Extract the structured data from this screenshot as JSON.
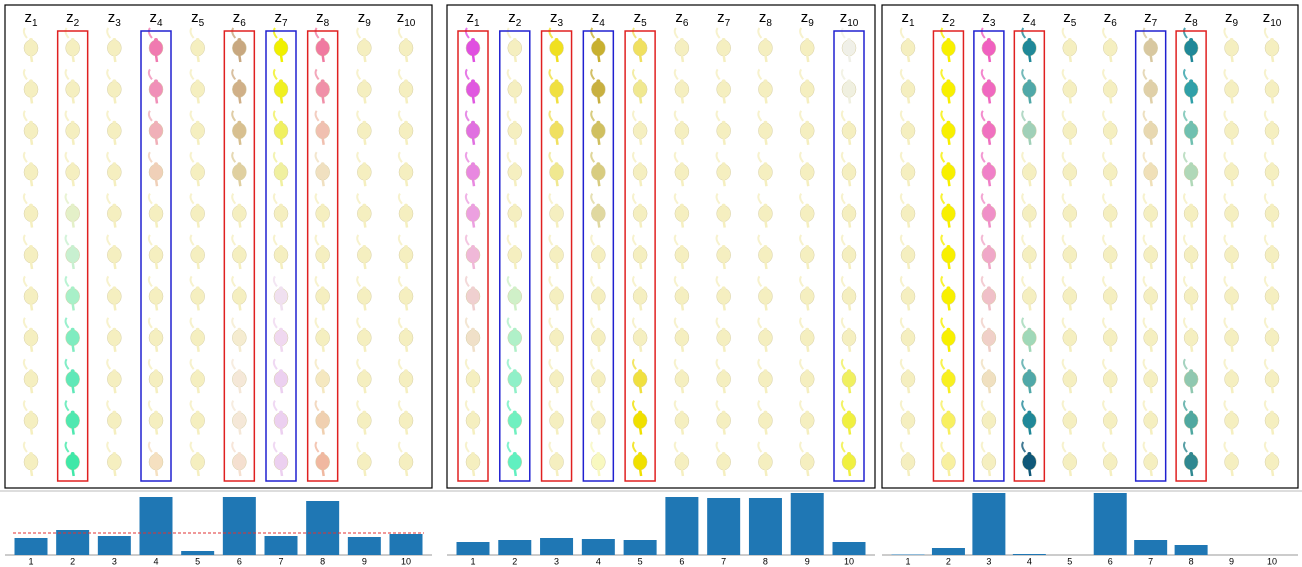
{
  "panels": [
    {
      "columns": [
        {
          "base": "z",
          "sub": "1"
        },
        {
          "base": "z",
          "sub": "2",
          "box": "#e02020",
          "colors": [
            "#f5efc0",
            "#f5efc0",
            "#f5efc0",
            "#f5efc0",
            "#e4f0c8",
            "#c8f0d0",
            "#a8f0c8",
            "#80ecc0",
            "#60e8b8",
            "#50e8b0",
            "#40e8a8"
          ]
        },
        {
          "base": "z",
          "sub": "3"
        },
        {
          "base": "z",
          "sub": "4",
          "box": "#2020d0",
          "colors": [
            "#f07ab0",
            "#f090b8",
            "#f0b0b8",
            "#f0d0b8",
            "#f5efc0",
            "#f5efc0",
            "#f5efc0",
            "#f5efc0",
            "#f5efc0",
            "#f5efc0",
            "#f5e0c0"
          ]
        },
        {
          "base": "z",
          "sub": "5"
        },
        {
          "base": "z",
          "sub": "6",
          "box": "#e02020",
          "colors": [
            "#c8a880",
            "#d0b088",
            "#d8c090",
            "#e0d0a0",
            "#f5efc0",
            "#f5efc0",
            "#f5efc0",
            "#f5ecd0",
            "#f5e8d8",
            "#f5e8d8",
            "#f5e0d0"
          ]
        },
        {
          "base": "z",
          "sub": "7",
          "box": "#2020d0",
          "colors": [
            "#f0f000",
            "#f0f020",
            "#f0f060",
            "#f0f0a0",
            "#f5efc0",
            "#f5efc0",
            "#f0e0f0",
            "#f0d8f0",
            "#ecd0f0",
            "#ecd0f0",
            "#ecd0f0"
          ]
        },
        {
          "base": "z",
          "sub": "8",
          "box": "#e02020",
          "colors": [
            "#f07aa0",
            "#f090a8",
            "#f0c0b0",
            "#f0e0c0",
            "#f5efc0",
            "#f5efc0",
            "#f5efc0",
            "#f5efc0",
            "#f5e8c0",
            "#f0d0b0",
            "#f0b8a0"
          ]
        },
        {
          "base": "z",
          "sub": "9"
        },
        {
          "base": "z",
          "sub": "10"
        }
      ],
      "default_color": "#f5efc0"
    },
    {
      "columns": [
        {
          "base": "z",
          "sub": "1",
          "box": "#e02020",
          "colors": [
            "#e050e0",
            "#e058e0",
            "#e070e0",
            "#e888e0",
            "#eca0e0",
            "#f0b8d8",
            "#f0d0d0",
            "#f0e0c8",
            "#f5efc0",
            "#f5efc0",
            "#f5efc0"
          ]
        },
        {
          "base": "z",
          "sub": "2",
          "box": "#2020d0",
          "colors": [
            "#f5efc0",
            "#f5efc0",
            "#f5efc0",
            "#f5efc0",
            "#f5efc0",
            "#f5efc0",
            "#d0f0c8",
            "#b0f0c8",
            "#90f0c8",
            "#70f0c0",
            "#60f0c0"
          ]
        },
        {
          "base": "z",
          "sub": "3",
          "box": "#e02020",
          "colors": [
            "#f0e020",
            "#f0e040",
            "#f0e060",
            "#f0e890",
            "#f5efc0",
            "#f5efc0",
            "#f5efc0",
            "#f5efc0",
            "#f5efc0",
            "#f5efc0",
            "#f5efc0"
          ]
        },
        {
          "base": "z",
          "sub": "4",
          "box": "#2020d0",
          "colors": [
            "#c8b030",
            "#c8b040",
            "#d0c060",
            "#d8cc80",
            "#e0d8a0",
            "#f5efc0",
            "#f5efc0",
            "#f5efc0",
            "#f5efc0",
            "#f5efc0",
            "#f8f8c0"
          ]
        },
        {
          "base": "z",
          "sub": "5",
          "box": "#e02020",
          "colors": [
            "#f0e060",
            "#f0e890",
            "#f5efc0",
            "#f5efc0",
            "#f5efc0",
            "#f5efc0",
            "#f5efc0",
            "#f5efc0",
            "#f0e040",
            "#f0e000",
            "#f0e000"
          ]
        },
        {
          "base": "z",
          "sub": "6"
        },
        {
          "base": "z",
          "sub": "7"
        },
        {
          "base": "z",
          "sub": "8"
        },
        {
          "base": "z",
          "sub": "9"
        },
        {
          "base": "z",
          "sub": "10",
          "box": "#2020d0",
          "colors": [
            "#f0f0e8",
            "#f0f0e0",
            "#f5efc0",
            "#f5efc0",
            "#f5efc0",
            "#f5efc0",
            "#f5efc0",
            "#f5efc0",
            "#f0f060",
            "#f0f040",
            "#f0f040"
          ]
        }
      ],
      "default_color": "#f5efc0"
    },
    {
      "columns": [
        {
          "base": "z",
          "sub": "1"
        },
        {
          "base": "z",
          "sub": "2",
          "box": "#e02020",
          "colors": [
            "#f8f000",
            "#f8f000",
            "#f8f000",
            "#f8f000",
            "#f8f000",
            "#f8f000",
            "#f8f000",
            "#f8f000",
            "#f8f020",
            "#f8f060",
            "#f8f0a0"
          ]
        },
        {
          "base": "z",
          "sub": "3",
          "box": "#2020d0",
          "colors": [
            "#f060c0",
            "#f068c0",
            "#f070c0",
            "#f080c8",
            "#f090c8",
            "#f0a8c8",
            "#f0c0c8",
            "#f0d0c8",
            "#f0e0c0",
            "#f5efc0",
            "#f5efc0"
          ]
        },
        {
          "base": "z",
          "sub": "4",
          "box": "#e02020",
          "colors": [
            "#208898",
            "#50a8a8",
            "#a0d0b8",
            "#f5efc0",
            "#f5efc0",
            "#f5efc0",
            "#f5efc0",
            "#a0d8b8",
            "#50a8a8",
            "#208898",
            "#105878"
          ]
        },
        {
          "base": "z",
          "sub": "5"
        },
        {
          "base": "z",
          "sub": "6"
        },
        {
          "base": "z",
          "sub": "7",
          "box": "#2020d0",
          "colors": [
            "#d8c8a0",
            "#e0d0a8",
            "#e8d8b0",
            "#f0e0b8",
            "#f5efc0",
            "#f5efc0",
            "#f5efc0",
            "#f5efc0",
            "#f5efc0",
            "#f5efc0",
            "#f5efc0"
          ]
        },
        {
          "base": "z",
          "sub": "8",
          "box": "#e02020",
          "colors": [
            "#208898",
            "#30a0a8",
            "#70c0b0",
            "#b0d8b8",
            "#f5efc0",
            "#f5efc0",
            "#f5efc0",
            "#f5efc0",
            "#90c8b0",
            "#50a8a0",
            "#308890"
          ]
        },
        {
          "base": "z",
          "sub": "9"
        },
        {
          "base": "z",
          "sub": "10"
        }
      ],
      "default_color": "#f5efc0"
    }
  ],
  "chart_data": [
    {
      "type": "bar",
      "categories": [
        "1",
        "2",
        "3",
        "4",
        "5",
        "6",
        "7",
        "8",
        "9",
        "10"
      ],
      "values": [
        17,
        25,
        19,
        58,
        4,
        58,
        19,
        54,
        18,
        21
      ],
      "color": "#1f77b4",
      "ylim": [
        0,
        62
      ],
      "reference_line": {
        "value": 22,
        "color": "#e03030"
      }
    },
    {
      "type": "bar",
      "categories": [
        "1",
        "2",
        "3",
        "4",
        "5",
        "6",
        "7",
        "8",
        "9",
        "10"
      ],
      "values": [
        13,
        15,
        17,
        16,
        15,
        58,
        57,
        57,
        62,
        13
      ],
      "color": "#1f77b4",
      "ylim": [
        0,
        62
      ]
    },
    {
      "type": "bar",
      "categories": [
        "1",
        "2",
        "3",
        "4",
        "5",
        "6",
        "7",
        "8",
        "9",
        "10"
      ],
      "values": [
        0.5,
        7,
        62,
        1,
        0,
        62,
        15,
        10,
        0,
        0
      ],
      "color": "#1f77b4",
      "ylim": [
        0,
        62
      ]
    }
  ]
}
